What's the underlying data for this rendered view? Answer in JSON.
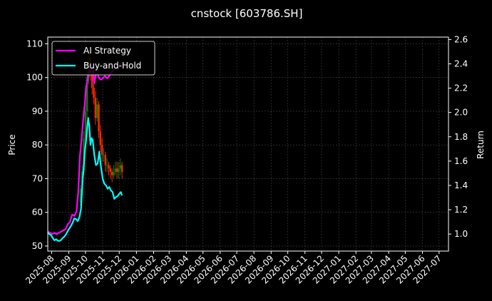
{
  "chart_data": {
    "type": "line",
    "title": "cnstock [603786.SH]",
    "xlabel": "",
    "ylabel": "Price",
    "ylabel_right": "Return",
    "grid": true,
    "legend_position": "top-left",
    "x_ticks": [
      "2025-08",
      "2025-09",
      "2025-10",
      "2025-11",
      "2025-12",
      "2026-01",
      "2026-02",
      "2026-03",
      "2026-04",
      "2026-05",
      "2026-06",
      "2026-07",
      "2026-08",
      "2026-09",
      "2026-10",
      "2026-11",
      "2026-12",
      "2027-01",
      "2027-02",
      "2027-03",
      "2027-04",
      "2027-05",
      "2027-06",
      "2027-07"
    ],
    "x_range": [
      "2025-07-25",
      "2027-07-18"
    ],
    "y_left": {
      "ticks": [
        50,
        60,
        70,
        80,
        90,
        100,
        110
      ],
      "range": [
        48.5,
        112
      ]
    },
    "y_right": {
      "ticks": [
        "1.0",
        "1.2",
        "1.4",
        "1.6",
        "1.8",
        "2.0",
        "2.2",
        "2.4",
        "2.6"
      ],
      "range": [
        0.86,
        2.62
      ]
    },
    "colors": {
      "ai": "#ff00ff",
      "bh": "#00ffff",
      "up": "#008000",
      "down": "#ff2a00",
      "grid": "#444444",
      "axis": "#ffffff"
    },
    "series": [
      {
        "name": "AI Strategy",
        "axis": "right",
        "x": [
          "2025-07-25",
          "2025-07-29",
          "2025-08-02",
          "2025-08-06",
          "2025-08-10",
          "2025-08-14",
          "2025-08-18",
          "2025-08-22",
          "2025-08-26",
          "2025-08-30",
          "2025-09-03",
          "2025-09-07",
          "2025-09-11",
          "2025-09-15",
          "2025-09-18",
          "2025-09-21",
          "2025-09-24",
          "2025-09-27",
          "2025-09-30",
          "2025-10-02",
          "2025-10-05",
          "2025-10-08",
          "2025-10-11",
          "2025-10-14",
          "2025-10-17",
          "2025-10-20",
          "2025-10-23",
          "2025-10-26",
          "2025-10-29",
          "2025-11-01",
          "2025-11-05",
          "2025-11-09",
          "2025-11-13",
          "2025-11-17",
          "2025-11-21",
          "2025-11-25",
          "2025-11-29",
          "2025-12-03"
        ],
        "values": [
          1.02,
          1.01,
          1.0,
          1.01,
          1.0,
          1.01,
          1.02,
          1.03,
          1.04,
          1.08,
          1.1,
          1.16,
          1.15,
          1.19,
          1.35,
          1.64,
          1.78,
          1.94,
          2.08,
          2.2,
          2.27,
          2.38,
          2.35,
          2.37,
          2.24,
          2.32,
          2.31,
          2.28,
          2.27,
          2.28,
          2.3,
          2.28,
          2.3,
          2.33,
          2.35,
          2.37,
          2.36,
          2.4
        ]
      },
      {
        "name": "Buy-and-Hold",
        "axis": "left",
        "x": [
          "2025-07-25",
          "2025-07-28",
          "2025-07-31",
          "2025-08-03",
          "2025-08-06",
          "2025-08-09",
          "2025-08-12",
          "2025-08-15",
          "2025-08-18",
          "2025-08-21",
          "2025-08-24",
          "2025-08-27",
          "2025-08-30",
          "2025-09-02",
          "2025-09-05",
          "2025-09-08",
          "2025-09-11",
          "2025-09-14",
          "2025-09-17",
          "2025-09-20",
          "2025-09-23",
          "2025-09-26",
          "2025-09-28",
          "2025-09-30",
          "2025-10-02",
          "2025-10-04",
          "2025-10-06",
          "2025-10-08",
          "2025-10-10",
          "2025-10-12",
          "2025-10-14",
          "2025-10-17",
          "2025-10-20",
          "2025-10-23",
          "2025-10-26",
          "2025-10-29",
          "2025-11-01",
          "2025-11-04",
          "2025-11-07",
          "2025-11-10",
          "2025-11-13",
          "2025-11-16",
          "2025-11-19",
          "2025-11-22",
          "2025-11-25",
          "2025-11-28",
          "2025-12-01",
          "2025-12-04",
          "2025-12-06"
        ],
        "values": [
          54.0,
          53.5,
          53.2,
          52.4,
          51.7,
          52.0,
          51.6,
          51.5,
          51.8,
          52.4,
          52.8,
          53.5,
          54.5,
          55.2,
          56.0,
          57.0,
          58.2,
          58.0,
          57.4,
          58.5,
          61.0,
          70.0,
          73.5,
          78.5,
          81.0,
          85.0,
          88.0,
          85.5,
          80.0,
          82.0,
          81.5,
          77.0,
          74.0,
          74.5,
          78.0,
          73.5,
          70.0,
          68.5,
          68.0,
          67.0,
          67.5,
          66.5,
          66.0,
          64.0,
          64.5,
          64.8,
          65.5,
          66.0,
          65.0
        ]
      }
    ],
    "candles": {
      "axis": "left",
      "x": [
        "2025-09-22",
        "2025-09-25",
        "2025-09-28",
        "2025-10-01",
        "2025-10-04",
        "2025-10-07",
        "2025-10-10",
        "2025-10-13",
        "2025-10-16",
        "2025-10-19",
        "2025-10-22",
        "2025-10-25",
        "2025-10-28",
        "2025-10-31",
        "2025-11-03",
        "2025-11-06",
        "2025-11-09",
        "2025-11-12",
        "2025-11-15",
        "2025-11-18",
        "2025-11-21",
        "2025-11-24",
        "2025-11-27",
        "2025-11-30",
        "2025-12-03",
        "2025-12-06"
      ],
      "open": [
        63,
        67,
        72,
        82,
        90,
        100,
        106,
        101,
        97,
        94,
        88,
        92,
        84,
        80,
        77,
        77,
        74,
        74,
        73,
        72,
        71,
        72,
        73,
        72,
        73,
        74
      ],
      "close": [
        67,
        72,
        82,
        90,
        100,
        106,
        101,
        97,
        94,
        88,
        92,
        84,
        80,
        77,
        77,
        74,
        74,
        73,
        72,
        71,
        72,
        73,
        72,
        73,
        74,
        72
      ],
      "high": [
        68,
        74,
        84,
        93,
        104,
        108,
        107,
        103,
        99,
        96,
        94,
        93,
        86,
        82,
        79,
        78,
        76,
        75,
        74,
        73,
        74,
        75,
        75,
        75,
        76,
        75
      ],
      "low": [
        62,
        66,
        71,
        80,
        88,
        98,
        99,
        95,
        92,
        86,
        87,
        82,
        78,
        75,
        75,
        72,
        72,
        71,
        70,
        69,
        70,
        71,
        70,
        70,
        71,
        70
      ]
    }
  }
}
